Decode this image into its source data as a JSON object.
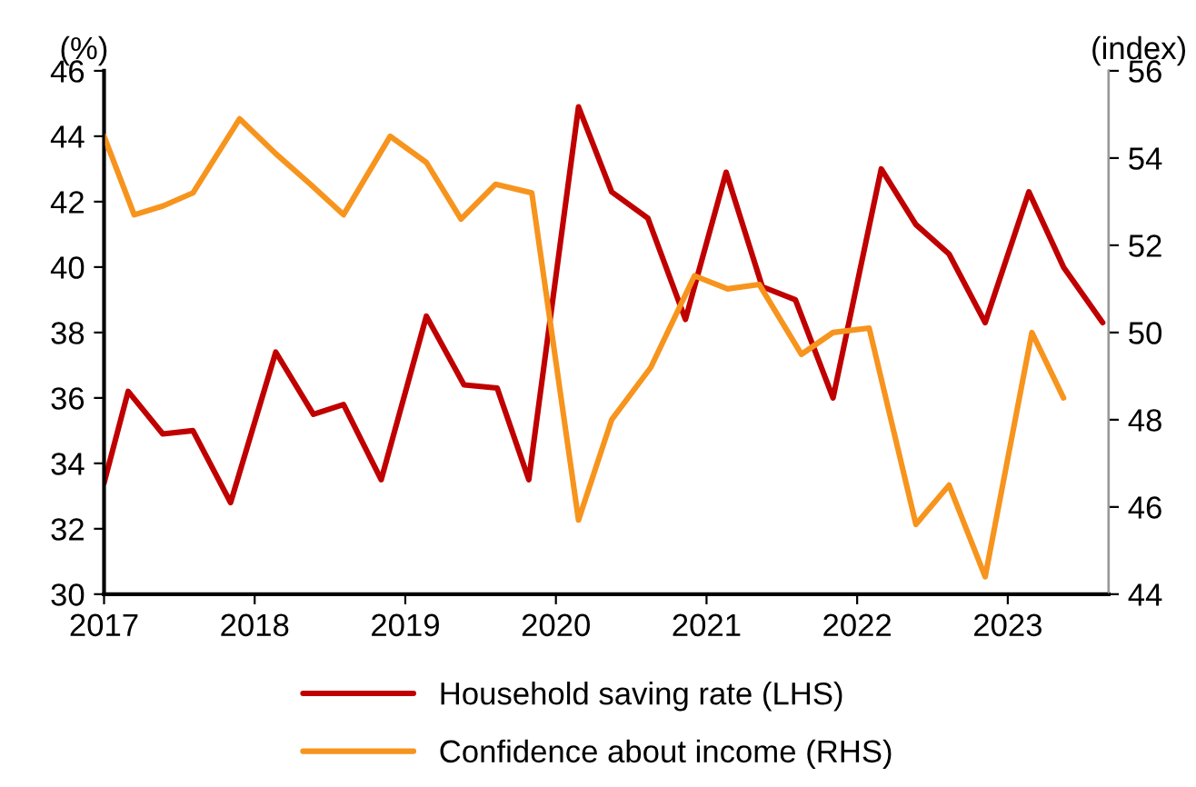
{
  "chart_data": {
    "type": "line",
    "ylabel": "(%)",
    "y2label": "(index)",
    "series": [
      {
        "name": "Household saving rate (LHS)",
        "color": "#c00000",
        "axis": "y",
        "x": [
          2017.0,
          2017.16,
          2017.39,
          2017.59,
          2017.84,
          2018.14,
          2018.39,
          2018.59,
          2018.84,
          2019.14,
          2019.39,
          2019.61,
          2019.82,
          2020.15,
          2020.37,
          2020.61,
          2020.86,
          2021.13,
          2021.37,
          2021.59,
          2021.84,
          2022.16,
          2022.39,
          2022.61,
          2022.85,
          2023.14,
          2023.37,
          2023.63
        ],
        "values": [
          33.4,
          36.2,
          34.9,
          35.0,
          32.8,
          37.4,
          35.5,
          35.8,
          33.5,
          38.5,
          36.4,
          36.3,
          33.5,
          44.9,
          42.3,
          41.5,
          38.4,
          42.9,
          39.4,
          39.0,
          36.0,
          43.0,
          41.3,
          40.4,
          38.3,
          42.3,
          40.0,
          38.3
        ]
      },
      {
        "name": "Confidence about income (RHS)",
        "color": "#f7941d",
        "axis": "y2",
        "x": [
          2017.0,
          2017.2,
          2017.39,
          2017.59,
          2017.9,
          2018.14,
          2018.37,
          2018.59,
          2018.9,
          2019.14,
          2019.37,
          2019.6,
          2019.84,
          2020.15,
          2020.37,
          2020.63,
          2020.92,
          2021.14,
          2021.35,
          2021.63,
          2021.84,
          2022.08,
          2022.39,
          2022.61,
          2022.85,
          2023.16,
          2023.37
        ],
        "values": [
          54.5,
          52.7,
          52.9,
          53.2,
          54.9,
          54.1,
          53.4,
          52.7,
          54.5,
          53.9,
          52.6,
          53.4,
          53.2,
          45.7,
          48.0,
          49.2,
          51.3,
          51.0,
          51.1,
          49.5,
          50.0,
          50.1,
          45.6,
          46.5,
          44.4,
          50.0,
          48.5
        ]
      }
    ],
    "xlim": [
      2017,
      2023.67
    ],
    "xticks": [
      2017,
      2018,
      2019,
      2020,
      2021,
      2022,
      2023
    ],
    "ylim": [
      30,
      46
    ],
    "yticks": [
      30,
      32,
      34,
      36,
      38,
      40,
      42,
      44,
      46
    ],
    "y2lim": [
      44,
      56
    ],
    "y2ticks": [
      44,
      46,
      48,
      50,
      52,
      54,
      56
    ],
    "grid": false,
    "legend": "bottom",
    "marker": "none",
    "line_style": "solid"
  }
}
